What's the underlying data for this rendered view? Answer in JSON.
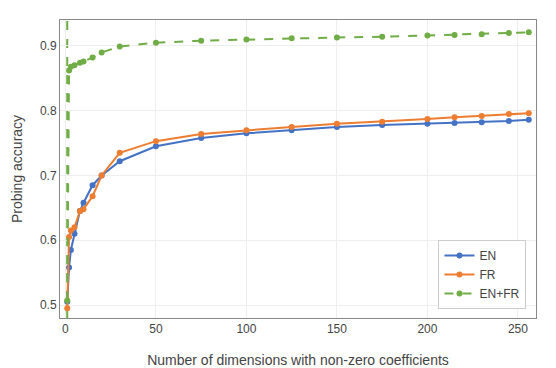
{
  "chart_data": {
    "type": "line",
    "x_label": "Number of dimensions with non-zero coefficients",
    "y_label": "Probing accuracy",
    "series": [
      {
        "name": "EN",
        "color": "#4472c4",
        "marker": "circle",
        "line_style": "solid",
        "x": [
          1,
          2,
          3,
          5,
          8,
          10,
          15,
          20,
          30,
          50,
          75,
          100,
          125,
          150,
          175,
          200,
          215,
          230,
          245,
          256
        ],
        "values": [
          0.505,
          0.558,
          0.585,
          0.61,
          0.645,
          0.658,
          0.685,
          0.7,
          0.722,
          0.745,
          0.758,
          0.765,
          0.77,
          0.775,
          0.778,
          0.78,
          0.781,
          0.782,
          0.784,
          0.786
        ]
      },
      {
        "name": "FR",
        "color": "#ed7d31",
        "marker": "circle",
        "line_style": "solid",
        "x": [
          1,
          2,
          3,
          5,
          8,
          10,
          15,
          20,
          30,
          50,
          75,
          100,
          125,
          150,
          175,
          200,
          215,
          230,
          245,
          256
        ],
        "values": [
          0.495,
          0.605,
          0.615,
          0.62,
          0.645,
          0.648,
          0.668,
          0.7,
          0.735,
          0.753,
          0.764,
          0.77,
          0.775,
          0.78,
          0.783,
          0.787,
          0.79,
          0.792,
          0.795,
          0.796
        ]
      },
      {
        "name": "EN+FR",
        "color": "#70ad47",
        "marker": "circle",
        "line_style": "dashed",
        "vline_x": 1,
        "x": [
          1,
          2,
          3,
          5,
          8,
          10,
          15,
          20,
          30,
          50,
          75,
          100,
          125,
          150,
          175,
          200,
          215,
          230,
          245,
          256
        ],
        "values": [
          0.507,
          0.862,
          0.868,
          0.87,
          0.874,
          0.876,
          0.882,
          0.89,
          0.899,
          0.905,
          0.908,
          0.91,
          0.912,
          0.913,
          0.914,
          0.916,
          0.917,
          0.918,
          0.92,
          0.921
        ]
      }
    ],
    "xlim": [
      -3,
      260
    ],
    "ylim": [
      0.48,
      0.94
    ],
    "xticks": [
      0,
      50,
      100,
      150,
      200,
      250
    ],
    "yticks": [
      0.5,
      0.6,
      0.7,
      0.8,
      0.9
    ],
    "grid": true,
    "legend": "lower right"
  }
}
